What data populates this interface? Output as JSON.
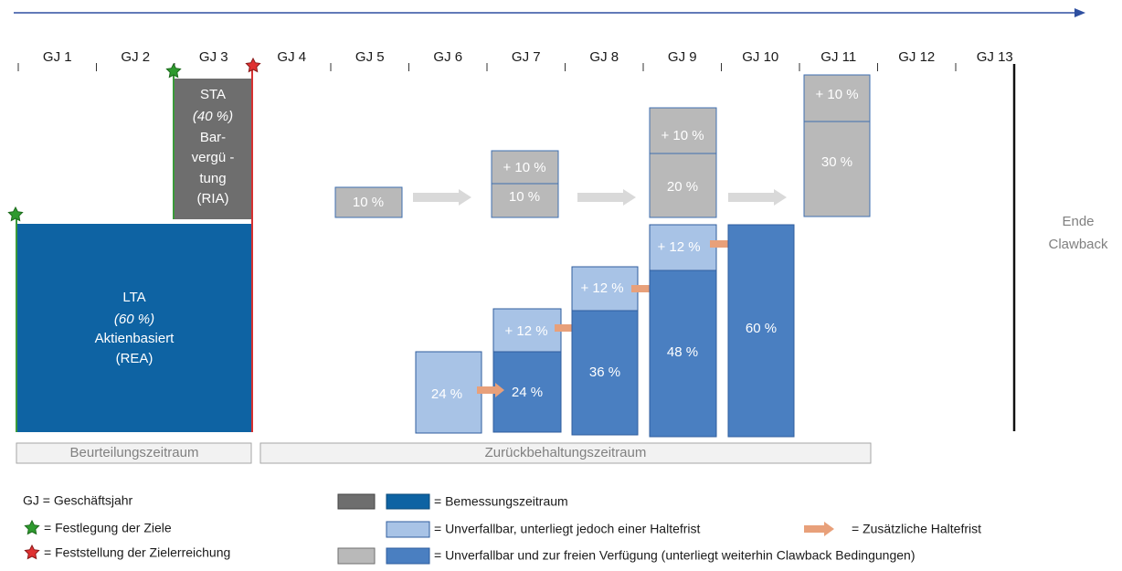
{
  "timeline": {
    "years": [
      "GJ 1",
      "GJ 2",
      "GJ 3",
      "GJ 4",
      "GJ 5",
      "GJ 6",
      "GJ 7",
      "GJ 8",
      "GJ 9",
      "GJ 10",
      "GJ 11",
      "GJ 12",
      "GJ 13"
    ]
  },
  "sta": {
    "title": "STA",
    "share": "(40 %)",
    "lines": [
      "Bar-",
      "vergü -",
      "tung",
      "(RIA)"
    ]
  },
  "lta": {
    "title": "LTA",
    "share": "(60 %)",
    "lines": [
      "Aktienbasiert",
      "(REA)"
    ]
  },
  "cash": [
    "10 %",
    "+ 10 %",
    "10 %",
    "+ 10 %",
    "20 %",
    "+ 10 %",
    "30 %"
  ],
  "shares": [
    "24 %",
    "+ 12 %",
    "24 %",
    "+ 12 %",
    "36 %",
    "+ 12 %",
    "48 %",
    "60 %"
  ],
  "end": [
    "Ende",
    "Clawback"
  ],
  "periods": [
    "Beurteilungszeitraum",
    "Zurückbehaltungszeitraum"
  ],
  "legend": {
    "abbreviation": "GJ = Geschäftsjahr",
    "target": "= Festlegung der Ziele",
    "achievement": "= Feststellung der Zielerreichung",
    "measurement": "= Bemessungszeitraum",
    "holding": "= Unverfallbar, unterliegt jedoch einer Haltefrist",
    "extra_holding": "= Zusätzliche Haltefrist",
    "free": "= Unverfallbar und zur freien Verfügung (unterliegt weiterhin Clawback Bedingungen)"
  }
}
